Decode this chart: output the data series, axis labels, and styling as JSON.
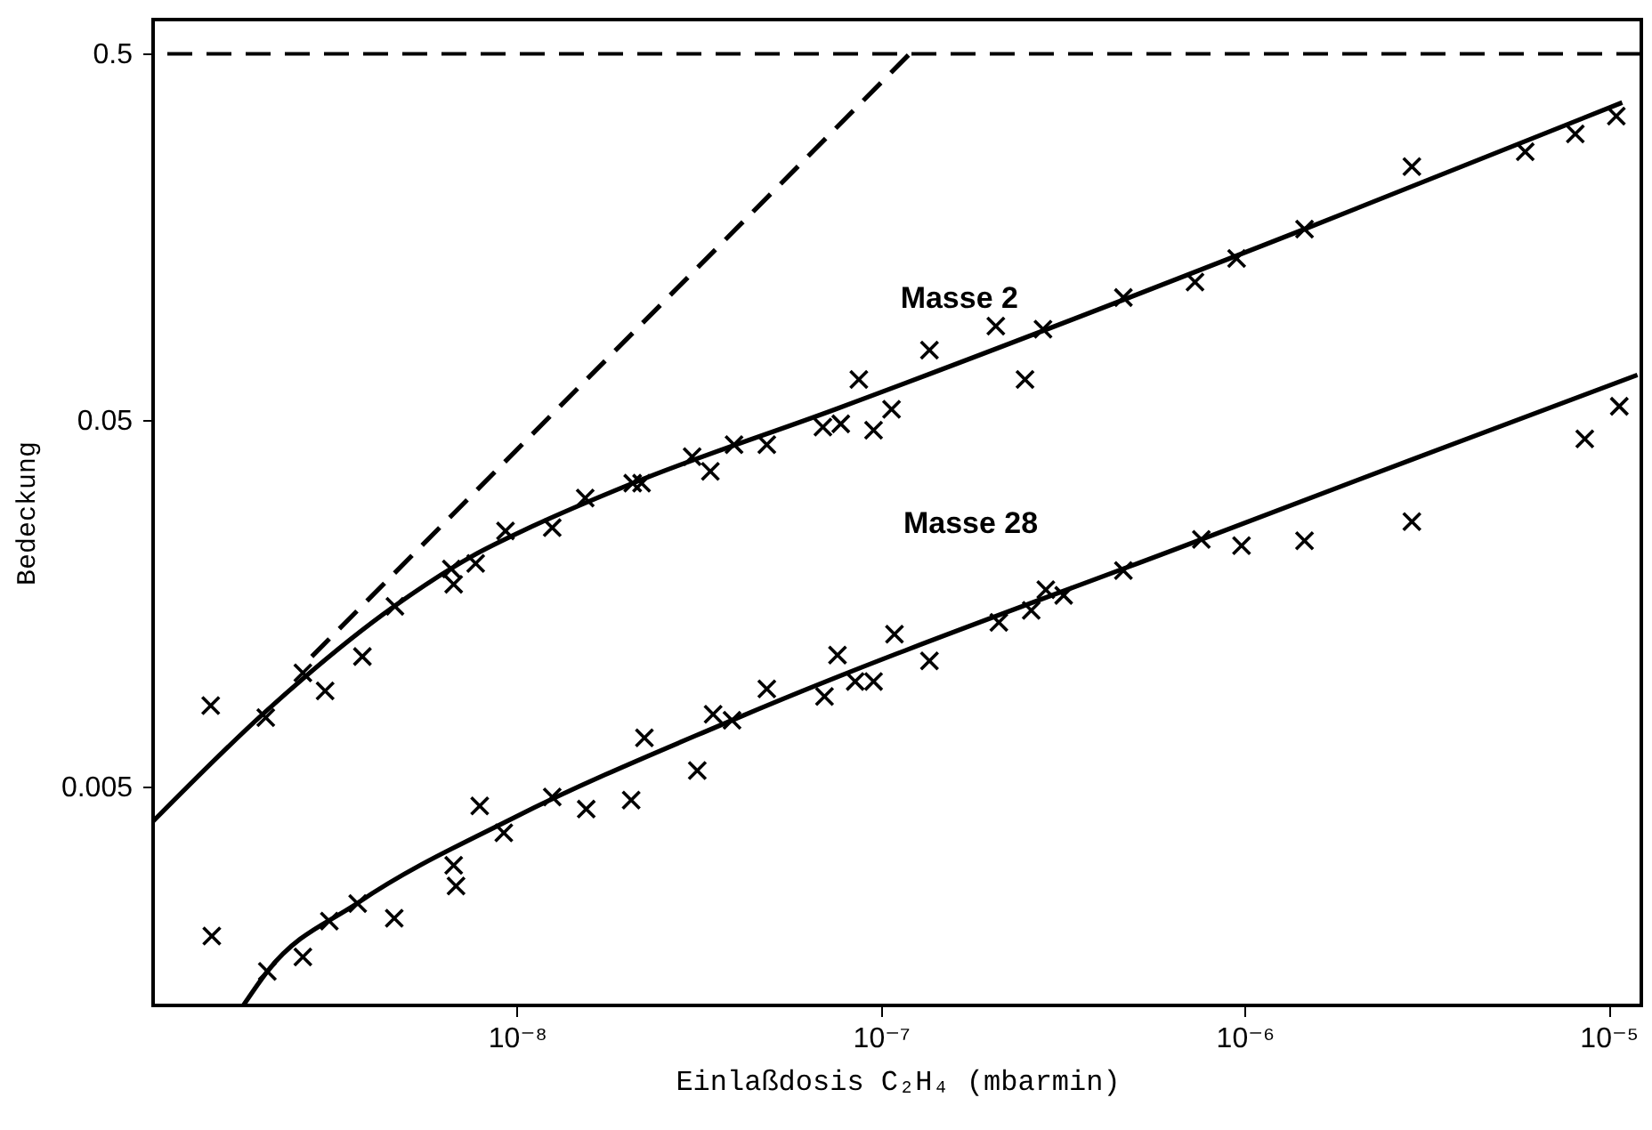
{
  "chart_data": {
    "type": "scatter",
    "xlabel": "Einlaßdosis C₂H₄ (mbarmin)",
    "ylabel": "Bedeckung",
    "log": "xy",
    "grid": false,
    "xlim": [
      1e-09,
      1.23e-05
    ],
    "ylim": [
      0.00126,
      0.62
    ],
    "xticks": [
      {
        "value": 1e-08,
        "label": "10⁻⁸"
      },
      {
        "value": 1e-07,
        "label": "10⁻⁷"
      },
      {
        "value": 1e-06,
        "label": "10⁻⁶"
      },
      {
        "value": 1e-05,
        "label": "10⁻⁵"
      }
    ],
    "yticks": [
      0.005,
      0.05,
      0.5
    ],
    "ref_lines": [
      {
        "axis": "y",
        "value": 0.5,
        "color": "#000000",
        "line_style": "dashed"
      }
    ],
    "series": [
      {
        "name": "Masse 2",
        "marker": "cross",
        "color": "#000000",
        "x": [
          1.44e-09,
          2.04e-09,
          2.58e-09,
          2.97e-09,
          3.76e-09,
          4.62e-09,
          6.7e-09,
          6.6e-09,
          7.7e-09,
          9.3e-09,
          1.25e-08,
          1.54e-08,
          2.08e-08,
          2.2e-08,
          3.03e-08,
          3.4e-08,
          3.95e-08,
          4.86e-08,
          6.93e-08,
          7.76e-08,
          8.7e-08,
          9.55e-08,
          1.07e-07,
          1.36e-07,
          2.07e-07,
          2.49e-07,
          2.79e-07,
          4.64e-07,
          7.3e-07,
          9.5e-07,
          1.46e-06,
          2.88e-06,
          5.9e-06,
          8.1e-06,
          1.05e-05
        ],
        "values": [
          0.0083,
          0.0077,
          0.0102,
          0.0091,
          0.0113,
          0.0155,
          0.0178,
          0.0196,
          0.0203,
          0.0249,
          0.0254,
          0.0306,
          0.0336,
          0.0336,
          0.0397,
          0.0362,
          0.0428,
          0.0428,
          0.0478,
          0.0488,
          0.0645,
          0.0469,
          0.0535,
          0.0776,
          0.0902,
          0.0645,
          0.0885,
          0.108,
          0.119,
          0.138,
          0.166,
          0.246,
          0.27,
          0.302,
          0.338
        ]
      },
      {
        "type": "line",
        "color": "#000000",
        "line_style": "solid",
        "x": [
          1e-09,
          2.04e-09,
          4.6e-09,
          7.5e-09,
          1.1e-08,
          2.08e-08,
          7.5e-08,
          1.46e-06,
          1.09e-05
        ],
        "values": [
          0.00401,
          0.008,
          0.0155,
          0.0212,
          0.0256,
          0.0336,
          0.0535,
          0.166,
          0.368
        ]
      },
      {
        "name": "Masse 28",
        "marker": "cross",
        "color": "#000000",
        "x": [
          1.45e-09,
          2.06e-09,
          2.58e-09,
          3.05e-09,
          3.65e-09,
          4.6e-09,
          6.7e-09,
          6.8e-09,
          7.9e-09,
          9.2e-09,
          1.25e-08,
          1.55e-08,
          2.06e-08,
          2.24e-08,
          3.13e-08,
          3.46e-08,
          3.9e-08,
          4.86e-08,
          7e-08,
          7.6e-08,
          8.5e-08,
          9.55e-08,
          1.09e-07,
          1.36e-07,
          2.11e-07,
          2.59e-07,
          2.84e-07,
          3.18e-07,
          4.64e-07,
          7.6e-07,
          9.8e-07,
          1.46e-06,
          2.88e-06,
          8.6e-06,
          1.07e-05
        ],
        "values": [
          0.00195,
          0.00156,
          0.00171,
          0.00214,
          0.00239,
          0.00218,
          0.00304,
          0.00267,
          0.00442,
          0.00373,
          0.00467,
          0.00433,
          0.00458,
          0.00678,
          0.00552,
          0.00786,
          0.00757,
          0.00922,
          0.00879,
          0.0114,
          0.00966,
          0.00966,
          0.013,
          0.011,
          0.014,
          0.0151,
          0.0172,
          0.0166,
          0.0194,
          0.0236,
          0.0227,
          0.0234,
          0.0264,
          0.0444,
          0.0545
        ]
      },
      {
        "type": "line",
        "color": "#000000",
        "line_style": "solid",
        "x": [
          1.77e-09,
          2.06e-09,
          3.65e-09,
          9.8e-09,
          3.9e-08,
          7.6e-07,
          2.88e-06,
          1.2e-05
        ],
        "values": [
          0.00126,
          0.00156,
          0.0024,
          0.0041,
          0.00757,
          0.0236,
          0.039,
          0.0664
        ]
      },
      {
        "type": "line",
        "color": "#000000",
        "line_style": "dashed",
        "x": [
          2.73e-09,
          1.2e-07
        ],
        "values": [
          0.0113,
          0.5
        ]
      }
    ]
  }
}
